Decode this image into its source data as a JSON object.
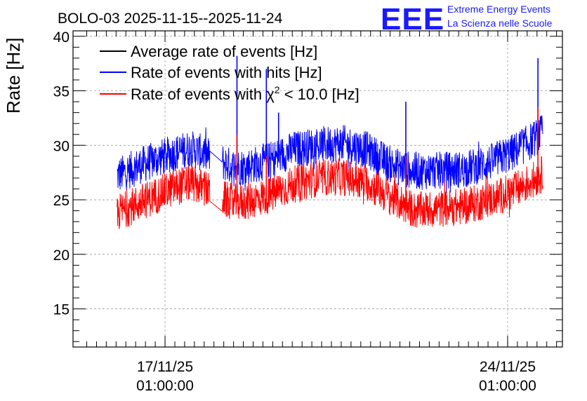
{
  "header": {
    "title": "BOLO-03 2025-11-15--2025-11-24",
    "logo_text": "EEE",
    "logo_line1": "Extreme Energy Events",
    "logo_line2": "La Scienza nelle Scuole"
  },
  "chart_data": {
    "type": "line",
    "title": "BOLO-03 2025-11-15--2025-11-24",
    "xlabel": "",
    "ylabel": "Rate [Hz]",
    "xlim_days": [
      0,
      10
    ],
    "ylim": [
      11.5,
      40.5
    ],
    "yticks": [
      15,
      20,
      25,
      30,
      35,
      40
    ],
    "ytick_labels": [
      "15",
      "20",
      "25",
      "30",
      "35",
      "40"
    ],
    "xticks": [
      {
        "day": 1.88,
        "date": "17/11/25",
        "time": "01:00:00"
      },
      {
        "day": 8.88,
        "date": "24/11/25",
        "time": "01:00:00"
      }
    ],
    "grid": true,
    "legend_position": "top-left",
    "series": [
      {
        "name": "Average rate of events [Hz]",
        "color": "#000000",
        "note": "hidden behind the other series"
      },
      {
        "name": "Rate of events with hits [Hz]",
        "color": "#0000ff",
        "time_days": [
          0.9,
          1.4,
          2.0,
          2.4,
          2.7,
          3.0,
          3.25,
          3.5,
          4.0,
          4.5,
          5.0,
          5.5,
          6.0,
          6.5,
          7.0,
          7.5,
          8.0,
          8.5,
          9.0,
          9.4,
          9.6
        ],
        "values": [
          27.2,
          28.2,
          29.2,
          29.7,
          29.2,
          28.6,
          28.0,
          28.0,
          28.6,
          29.6,
          30.0,
          30.2,
          29.6,
          28.2,
          27.6,
          27.7,
          27.8,
          28.4,
          29.4,
          30.5,
          31.2
        ],
        "gap": [
          2.8,
          3.05
        ],
        "spikes": [
          {
            "day": 3.35,
            "value": 38.2
          },
          {
            "day": 3.95,
            "value": 37.0
          },
          {
            "day": 4.2,
            "value": 33.0
          },
          {
            "day": 6.8,
            "value": 34.0
          },
          {
            "day": 9.5,
            "value": 38.0
          }
        ]
      },
      {
        "name": "Rate of events with χ² < 10.0 [Hz]",
        "color": "#ff0000",
        "time_days": [
          0.9,
          1.4,
          2.0,
          2.4,
          2.7,
          3.0,
          3.25,
          3.5,
          4.0,
          4.5,
          5.0,
          5.5,
          6.0,
          6.5,
          7.0,
          7.5,
          8.0,
          8.5,
          9.0,
          9.4,
          9.6
        ],
        "values": [
          23.8,
          24.8,
          26.0,
          26.6,
          26.0,
          25.2,
          24.8,
          24.8,
          25.4,
          26.4,
          27.0,
          27.1,
          26.6,
          25.2,
          24.0,
          24.2,
          24.4,
          25.0,
          25.8,
          26.8,
          27.4
        ],
        "gap": [
          2.8,
          3.05
        ],
        "spikes": [
          {
            "day": 3.35,
            "value": 31.0
          },
          {
            "day": 3.95,
            "value": 29.0
          },
          {
            "day": 6.8,
            "value": 29.0
          },
          {
            "day": 9.5,
            "value": 33.5
          }
        ]
      }
    ],
    "colors": {
      "hits": "#0000ff",
      "chi2": "#ff0000",
      "average": "#000000",
      "logo": "#1a1aff"
    }
  },
  "legend": {
    "items": [
      {
        "label": "Average rate of events [Hz]"
      },
      {
        "label": "Rate of events with hits [Hz]"
      },
      {
        "label_prefix": "Rate of events with ",
        "label_chi": "χ",
        "label_sup": "2",
        "label_suffix": " < 10.0 [Hz]"
      }
    ]
  }
}
